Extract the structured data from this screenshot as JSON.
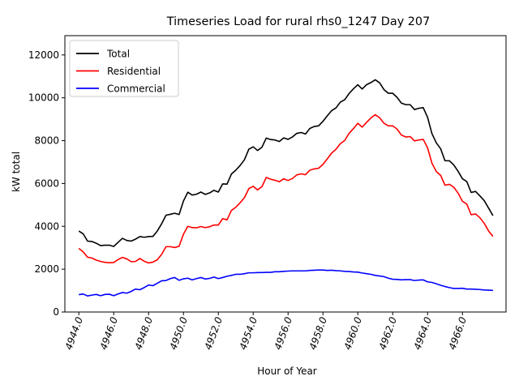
{
  "chart_data": {
    "type": "line",
    "title": "Timeseries Load for rural rhs0_1247  Day 207",
    "xlabel": "Hour of Year",
    "ylabel": "kW total",
    "xlim": [
      4943.2,
      4968.5
    ],
    "ylim": [
      0,
      12900
    ],
    "x_ticks": [
      4944,
      4946,
      4948,
      4950,
      4952,
      4954,
      4956,
      4958,
      4960,
      4962,
      4964,
      4966
    ],
    "x_tick_labels": [
      "4944.0",
      "4946.0",
      "4948.0",
      "4950.0",
      "4952.0",
      "4954.0",
      "4956.0",
      "4958.0",
      "4960.0",
      "4962.0",
      "4964.0",
      "4966.0"
    ],
    "y_ticks": [
      0,
      2000,
      4000,
      6000,
      8000,
      10000,
      12000
    ],
    "y_tick_labels": [
      "0",
      "2000",
      "4000",
      "6000",
      "8000",
      "10000",
      "12000"
    ],
    "legend_position": "top-left",
    "grid": false,
    "x_start": 4944.0,
    "x_step": 0.25,
    "series": [
      {
        "name": "Total",
        "color": "#000000",
        "values": [
          3780,
          3650,
          3310,
          3290,
          3210,
          3100,
          3120,
          3120,
          3060,
          3250,
          3440,
          3340,
          3310,
          3400,
          3520,
          3490,
          3520,
          3530,
          3780,
          4120,
          4520,
          4560,
          4610,
          4550,
          5180,
          5590,
          5460,
          5500,
          5600,
          5490,
          5560,
          5680,
          5600,
          5980,
          5970,
          6440,
          6620,
          6840,
          7110,
          7600,
          7710,
          7540,
          7690,
          8120,
          8050,
          8030,
          7960,
          8130,
          8060,
          8170,
          8340,
          8380,
          8310,
          8570,
          8660,
          8690,
          8900,
          9160,
          9400,
          9530,
          9800,
          9910,
          10200,
          10420,
          10610,
          10410,
          10610,
          10710,
          10840,
          10700,
          10380,
          10210,
          10210,
          10020,
          9750,
          9680,
          9680,
          9450,
          9510,
          9540,
          9090,
          8330,
          7900,
          7620,
          7060,
          7060,
          6870,
          6570,
          6220,
          6090,
          5580,
          5630,
          5420,
          5200,
          4850,
          4500
        ]
      },
      {
        "name": "Residential",
        "color": "#ff0000",
        "values": [
          2970,
          2810,
          2560,
          2520,
          2420,
          2360,
          2320,
          2300,
          2310,
          2450,
          2550,
          2480,
          2350,
          2360,
          2500,
          2370,
          2290,
          2330,
          2440,
          2690,
          3050,
          3050,
          3010,
          3070,
          3630,
          4000,
          3940,
          3930,
          3990,
          3940,
          3980,
          4060,
          4060,
          4360,
          4300,
          4740,
          4890,
          5100,
          5340,
          5760,
          5870,
          5700,
          5850,
          6280,
          6200,
          6150,
          6080,
          6220,
          6140,
          6230,
          6400,
          6450,
          6410,
          6620,
          6680,
          6710,
          6890,
          7150,
          7420,
          7600,
          7860,
          8010,
          8340,
          8560,
          8810,
          8630,
          8850,
          9060,
          9210,
          9070,
          8810,
          8690,
          8690,
          8540,
          8260,
          8170,
          8190,
          7990,
          8030,
          8060,
          7670,
          6950,
          6560,
          6380,
          5920,
          5960,
          5830,
          5550,
          5170,
          5040,
          4540,
          4580,
          4400,
          4140,
          3780,
          3530
        ]
      },
      {
        "name": "Commercial",
        "color": "#0000ff",
        "values": [
          810,
          840,
          750,
          790,
          820,
          760,
          820,
          830,
          760,
          840,
          910,
          880,
          960,
          1070,
          1040,
          1140,
          1260,
          1230,
          1340,
          1460,
          1470,
          1560,
          1610,
          1480,
          1550,
          1580,
          1500,
          1560,
          1610,
          1540,
          1570,
          1630,
          1560,
          1610,
          1670,
          1710,
          1760,
          1760,
          1790,
          1830,
          1830,
          1840,
          1840,
          1850,
          1850,
          1880,
          1880,
          1900,
          1910,
          1920,
          1920,
          1920,
          1920,
          1940,
          1950,
          1960,
          1960,
          1940,
          1950,
          1930,
          1920,
          1900,
          1890,
          1870,
          1860,
          1820,
          1790,
          1760,
          1710,
          1680,
          1650,
          1580,
          1530,
          1520,
          1500,
          1510,
          1510,
          1470,
          1490,
          1500,
          1410,
          1380,
          1320,
          1250,
          1190,
          1140,
          1100,
          1100,
          1110,
          1070,
          1070,
          1060,
          1050,
          1030,
          1020,
          1010
        ]
      }
    ]
  }
}
